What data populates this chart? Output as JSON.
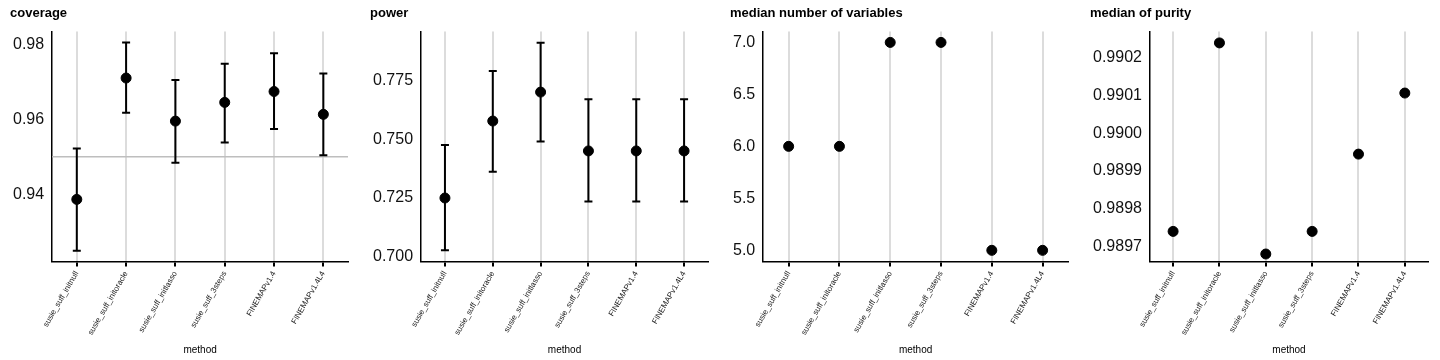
{
  "chart_data": [
    {
      "type": "scatter",
      "title": "coverage",
      "xlabel": "method",
      "categories": [
        "susie_suff_initnull",
        "susie_suff_initoracle",
        "susie_suff_initlasso",
        "susie_suff_3steps",
        "FINEMAPv1.4",
        "FINEMAPv1.4L4"
      ],
      "series": [
        {
          "color": "#000000",
          "values": [
            0.9386,
            0.971,
            0.9595,
            0.9645,
            0.9674,
            0.9613
          ],
          "errors": [
            [
              0.9249,
              0.9522
            ],
            [
              0.9617,
              0.9805
            ],
            [
              0.9484,
              0.9705
            ],
            [
              0.9538,
              0.9748
            ],
            [
              0.9574,
              0.9776
            ],
            [
              0.9504,
              0.9722
            ]
          ]
        }
      ],
      "ylim": [
        0.922,
        0.9834
      ],
      "yticks": [
        0.94,
        0.96,
        0.98
      ],
      "ref_lines": [
        {
          "axis": "y",
          "value": 0.95,
          "color": "#bebebe"
        }
      ],
      "grid": "x",
      "marker": "circle",
      "legend": false
    },
    {
      "type": "scatter",
      "title": "power",
      "xlabel": "method",
      "categories": [
        "susie_suff_initnull",
        "susie_suff_initoracle",
        "susie_suff_initlasso",
        "susie_suff_3steps",
        "FINEMAPv1.4",
        "FINEMAPv1.4L4"
      ],
      "series": [
        {
          "color": "#000000",
          "values": [
            0.725,
            0.7577,
            0.77,
            0.745,
            0.745,
            0.745
          ],
          "errors": [
            [
              0.7028,
              0.7475
            ],
            [
              0.7362,
              0.779
            ],
            [
              0.749,
              0.791
            ],
            [
              0.7235,
              0.767
            ],
            [
              0.7235,
              0.767
            ],
            [
              0.7235,
              0.767
            ]
          ]
        }
      ],
      "ylim": [
        0.698,
        0.7957
      ],
      "yticks": [
        {
          "value": 0.7,
          "label": "0.700"
        },
        {
          "value": 0.725,
          "label": "0.725"
        },
        {
          "value": 0.75,
          "label": "0.750"
        },
        {
          "value": 0.775,
          "label": "0.775"
        }
      ],
      "grid": "x",
      "marker": "circle",
      "legend": false
    },
    {
      "type": "scatter",
      "title": "median number of variables",
      "xlabel": "method",
      "categories": [
        "susie_suff_initnull",
        "susie_suff_initoracle",
        "susie_suff_initlasso",
        "susie_suff_3steps",
        "FINEMAPv1.4",
        "FINEMAPv1.4L4"
      ],
      "series": [
        {
          "color": "#000000",
          "values": [
            6,
            6,
            7,
            7,
            5,
            5
          ]
        }
      ],
      "ylim": [
        4.892,
        7.104
      ],
      "yticks": [
        {
          "value": 5,
          "label": "5.0"
        },
        5.5,
        {
          "value": 6,
          "label": "6.0"
        },
        6.5,
        {
          "value": 7,
          "label": "7.0"
        }
      ],
      "grid": "x",
      "marker": "circle",
      "legend": false
    },
    {
      "type": "scatter",
      "title": "median of purity",
      "xlabel": "method",
      "categories": [
        "susie_suff_initnull",
        "susie_suff_initoracle",
        "susie_suff_initlasso",
        "susie_suff_3steps",
        "FINEMAPv1.4",
        "FINEMAPv1.4L4"
      ],
      "series": [
        {
          "color": "#000000",
          "values": [
            0.98974,
            0.99024,
            0.98968,
            0.98974,
            0.989945,
            0.990107
          ]
        }
      ],
      "ylim": [
        0.98966,
        0.99027
      ],
      "yticks": [
        0.9897,
        0.9898,
        0.9899,
        {
          "value": 0.99,
          "label": "0.9900"
        },
        0.9901,
        0.9902
      ],
      "grid": "x",
      "marker": "circle",
      "legend": false
    }
  ]
}
